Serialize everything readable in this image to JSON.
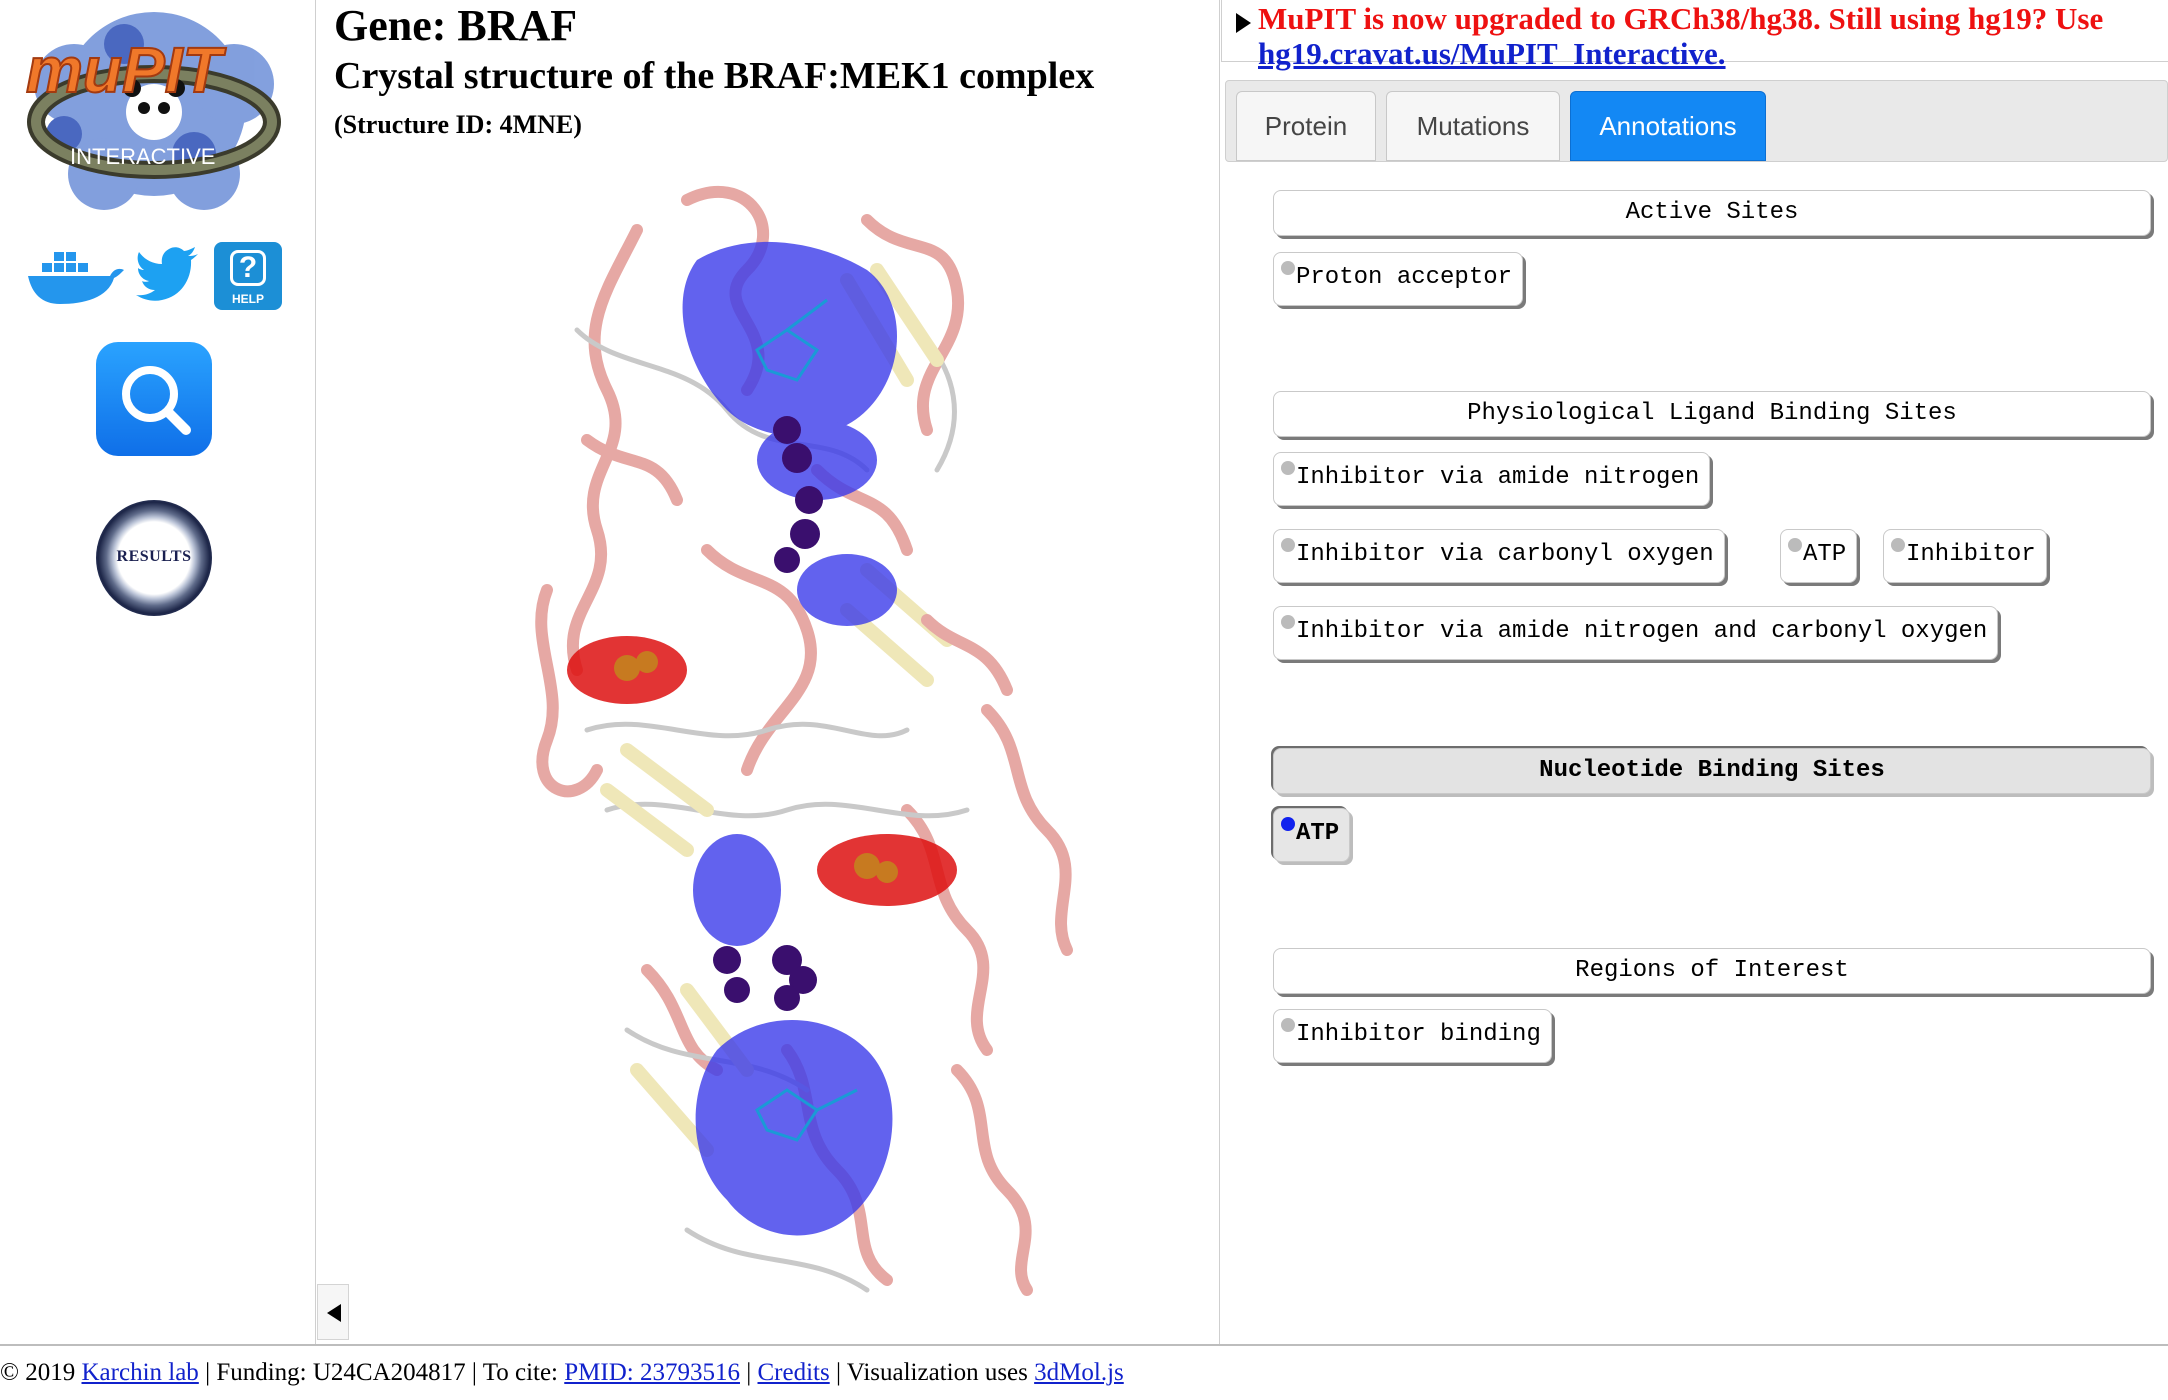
{
  "sidebar": {
    "logo_text": "muPIT",
    "logo_subtext": "INTERACTIVE",
    "help_label": "HELP",
    "results_label": "RESULTS"
  },
  "center": {
    "gene_title": "Gene: BRAF",
    "structure_title": "Crystal structure of the BRAF:MEK1 complex",
    "structure_id": "(Structure ID: 4MNE)"
  },
  "notice": {
    "text": "MuPIT is now upgraded to GRCh38/hg38. Still using hg19? Use",
    "link": "hg19.cravat.us/MuPIT_Interactive."
  },
  "tabs": {
    "protein": "Protein",
    "mutations": "Mutations",
    "annotations": "Annotations"
  },
  "annotations": {
    "active_sites": {
      "title": "Active Sites",
      "chips": [
        "Proton acceptor"
      ]
    },
    "ligand_sites": {
      "title": "Physiological Ligand Binding Sites",
      "chips": [
        "Inhibitor via amide nitrogen",
        "Inhibitor via carbonyl oxygen",
        "ATP",
        "Inhibitor",
        "Inhibitor via amide nitrogen and carbonyl oxygen"
      ]
    },
    "nucleotide_sites": {
      "title": "Nucleotide Binding Sites",
      "chips": [
        "ATP"
      ]
    },
    "regions": {
      "title": "Regions of Interest",
      "chips": [
        "Inhibitor binding"
      ]
    }
  },
  "colors": {
    "helix": "#e6a8a4",
    "sheet": "#efe7b8",
    "surface_blue": "#3b3bea",
    "surface_red": "#dd1111",
    "notice_red": "#ee1111",
    "tab_active": "#1388f4"
  },
  "footer": {
    "copyright": "© 2019",
    "lab_link": "Karchin lab",
    "funding": "| Funding: U24CA204817 | To cite:",
    "pmid_link": "PMID: 23793516",
    "sep1": "|",
    "credits_link": "Credits",
    "viz": "| Visualization uses",
    "viz_link": "3dMol.js"
  }
}
